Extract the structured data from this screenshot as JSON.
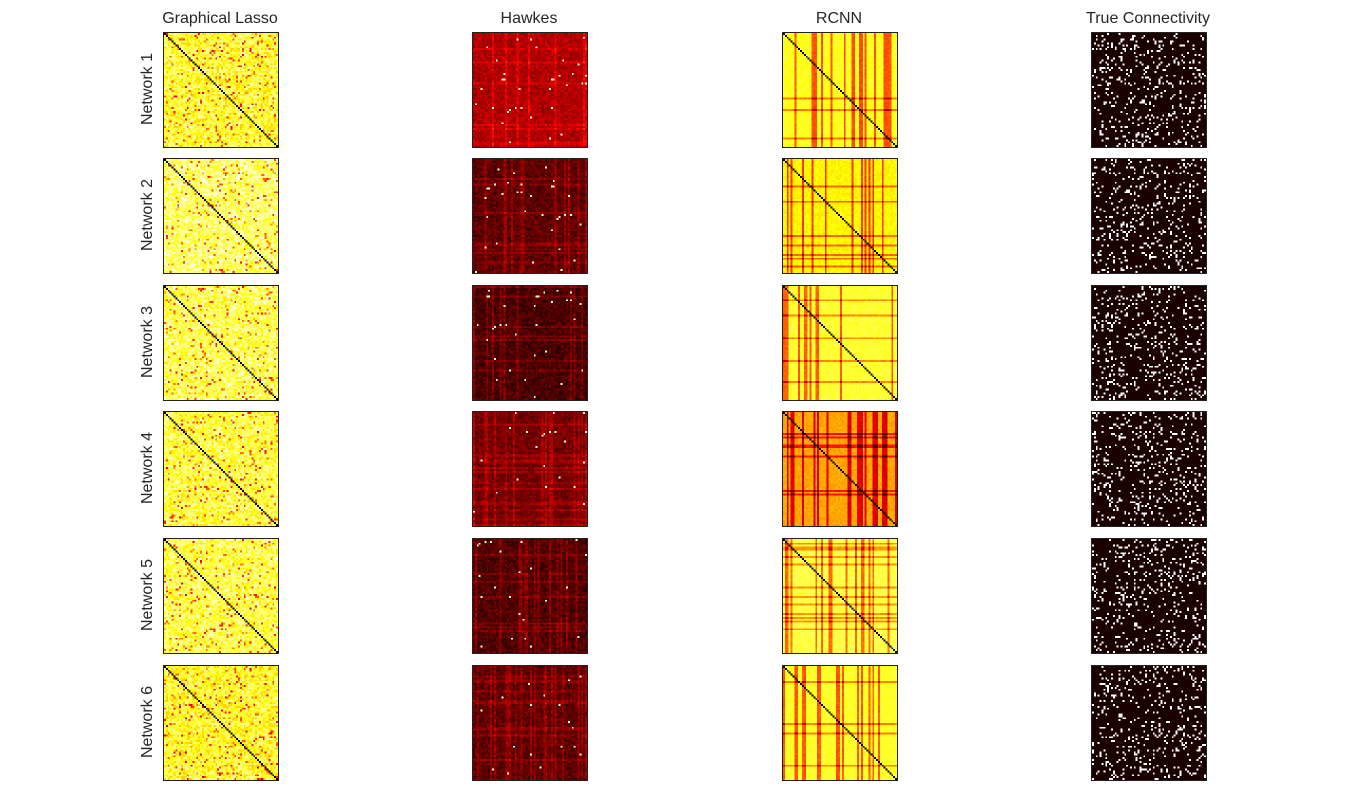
{
  "chart_data": {
    "type": "heatmap",
    "columns": [
      "Graphical Lasso",
      "Hawkes",
      "RCNN",
      "True Connectivity"
    ],
    "rows": [
      "Network 1",
      "Network 2",
      "Network 3",
      "Network 4",
      "Network 5",
      "Network 6"
    ],
    "colormap": "hot",
    "matrix_size": 60,
    "diagonal_dark": [
      true,
      false,
      true,
      false
    ],
    "column_style": [
      "dense-bright",
      "dark-sparse-bright",
      "bright-banded",
      "binary"
    ],
    "colors": {
      "dark": "#0a0000",
      "red": "#b30000",
      "orange": "#ff6600",
      "yellow": "#ffff33",
      "white": "#ffffff",
      "frame": "#222222"
    },
    "grid": false
  }
}
